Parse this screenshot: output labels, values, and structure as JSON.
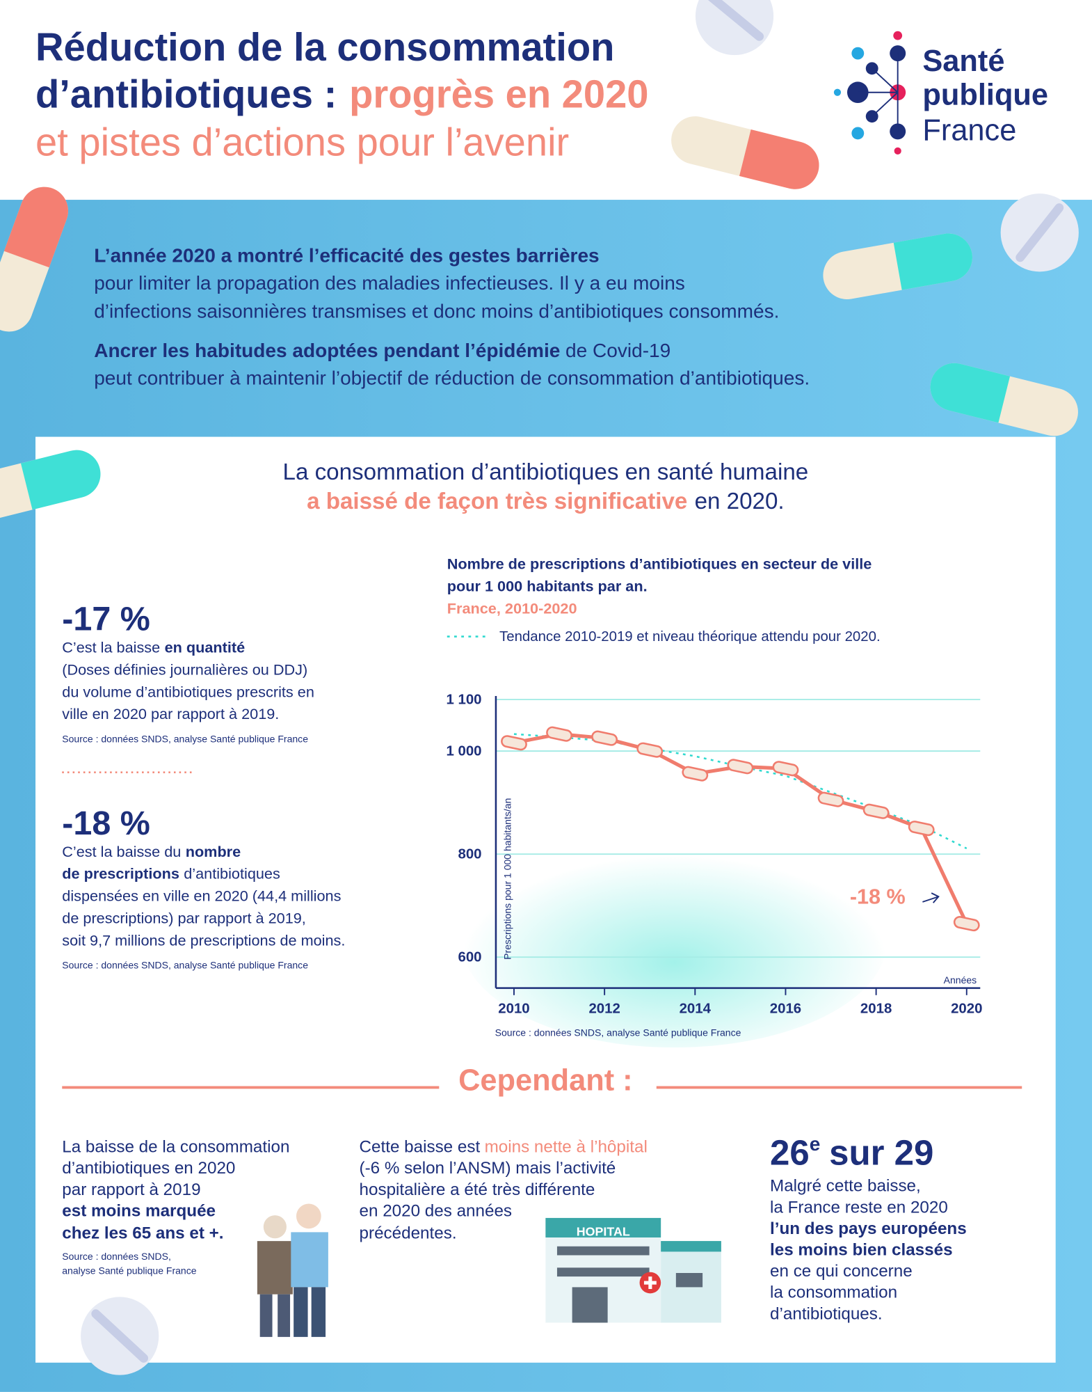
{
  "header": {
    "title": [
      "Réduction de la consommation",
      "d’antibiotiques :",
      "progrès en 2020",
      "et pistes d’actions pour l’avenir"
    ]
  },
  "logo": [
    "Santé",
    "publique",
    "France"
  ],
  "intro": {
    "p1": [
      "L’année 2020 a montré l’efficacité des gestes barrières",
      "pour limiter la propagation des maladies infectieuses. Il y a eu moins",
      "d’infections saisonnières transmises et donc moins d’antibiotiques consommés."
    ],
    "p2": [
      "Ancrer les habitudes adoptées pendant l’épidémie",
      "de Covid-19",
      "peut contribuer à maintenir l’objectif de réduction de consommation d’antibiotiques."
    ]
  },
  "headline": [
    "La consommation d’antibiotiques en santé humaine",
    "a baissé de façon très significative",
    "en 2020."
  ],
  "stats": [
    {
      "value": "-17 %",
      "lines": [
        "C’est la baisse",
        "en quantité",
        "(Doses définies journalières ou DDJ)",
        "du volume d’antibiotiques prescrits en",
        "ville en 2020 par rapport à 2019."
      ],
      "source": "Source : données SNDS, analyse Santé publique France"
    },
    {
      "value": "-18 %",
      "lines": [
        "C’est la baisse du",
        "nombre",
        "de prescriptions",
        "d’antibiotiques",
        "dispensées en ville en 2020 (44,4 millions",
        "de prescriptions) par rapport à 2019,",
        "soit 9,7 millions de prescriptions de moins."
      ],
      "source": "Source : données SNDS, analyse Santé publique France"
    }
  ],
  "chart_data": {
    "type": "line",
    "title": [
      "Nombre de prescriptions d’antibiotiques en secteur de ville",
      "pour 1 000 habitants par an."
    ],
    "subtitle": "France, 2010-2020",
    "ylabel": "Prescriptions pour 1 000 habitants/an",
    "xlabel": "Années",
    "annotation": "-18 %",
    "source": "Source : données SNDS, analyse Santé publique France",
    "x": [
      2010,
      2011,
      2012,
      2013,
      2014,
      2015,
      2016,
      2017,
      2018,
      2019,
      2020
    ],
    "series": [
      {
        "color": "#f07c6d",
        "values": [
          1016,
          1033,
          1025,
          1002,
          956,
          970,
          966,
          906,
          883,
          850,
          665
        ]
      },
      {
        "name": "Tendance 2010-2019 et niveau théorique attendu pour 2020.",
        "color": "#2fd9cf",
        "dashed": true,
        "values": [
          1033,
          1027,
          1020,
          1005,
          990,
          970,
          952,
          920,
          888,
          855,
          811
        ]
      }
    ],
    "xlim": [
      2009.6,
      2020.3
    ],
    "ylim": [
      540,
      1100
    ],
    "xticks": [
      2010,
      2012,
      2014,
      2016,
      2018,
      2020
    ],
    "yticks": [
      {
        "value": 1100,
        "label": "1 100"
      },
      {
        "value": 1000,
        "label": "1 000"
      },
      800,
      600
    ],
    "grid": true
  },
  "cependant": {
    "title": "Cependant :",
    "col1": {
      "lines": [
        "La baisse de la consommation",
        "d’antibiotiques en 2020",
        "par rapport à 2019",
        "est moins marquée",
        "chez les 65 ans et +."
      ],
      "source": [
        "Source : données SNDS,",
        "analyse Santé publique France"
      ]
    },
    "col2": {
      "lines": [
        "Cette baisse est",
        "moins nette à l’hôpital",
        "(-6 % selon l’ANSM) mais l’activité",
        "hospitalière a été très différente",
        "en 2020 des années",
        "précédentes."
      ]
    },
    "col3": {
      "rank": "26",
      "rank_sup": "e",
      "rank_rest": "sur 29",
      "lines": [
        "Malgré cette baisse,",
        "la France reste en 2020",
        "l’un des pays européens",
        "les moins bien classés",
        "en ce qui concerne",
        "la consommation",
        "d’antibiotiques."
      ]
    }
  },
  "hospital": {
    "sign": "HOPITAL"
  }
}
